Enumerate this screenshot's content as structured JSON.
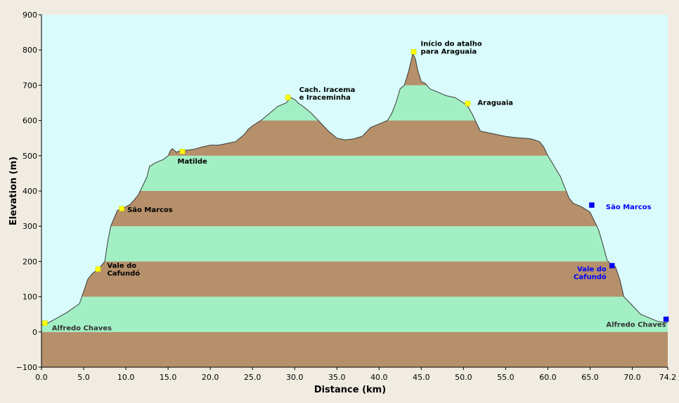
{
  "chart_data": {
    "type": "area",
    "xlabel": "Distance  (km)",
    "ylabel": "Elevation (m)",
    "xlim": [
      0,
      74.2
    ],
    "ylim": [
      -100,
      900
    ],
    "x_ticks": [
      "0.0",
      "5.0",
      "10.0",
      "15.0",
      "20.0",
      "25.0",
      "30.0",
      "35.0",
      "40.0",
      "45.0",
      "50.0",
      "55.0",
      "60.0",
      "65.0",
      "70.0",
      "74.2"
    ],
    "x_tick_values": [
      0,
      5,
      10,
      15,
      20,
      25,
      30,
      35,
      40,
      45,
      50,
      55,
      60,
      65,
      70,
      74.2
    ],
    "y_ticks": [
      "900",
      "800",
      "700",
      "600",
      "500",
      "400",
      "300",
      "200",
      "100",
      "0",
      "−100"
    ],
    "y_tick_values": [
      900,
      800,
      700,
      600,
      500,
      400,
      300,
      200,
      100,
      0,
      -100
    ],
    "bands": {
      "step": 100,
      "colors": [
        "#b5906a",
        "#a2efc4"
      ]
    },
    "plot_background": "#d9fbfb",
    "grid": false,
    "profile": {
      "x": [
        0,
        0.5,
        1.5,
        3.0,
        4.5,
        5.0,
        5.5,
        6.0,
        6.8,
        7.5,
        7.8,
        8.2,
        9.0,
        9.5,
        10.0,
        10.5,
        11.0,
        11.5,
        12.5,
        12.8,
        13.5,
        14.5,
        15.0,
        15.3,
        15.5,
        16.0,
        16.5,
        17.0,
        18.0,
        19.0,
        20.0,
        21.0,
        22.0,
        23.0,
        24.0,
        24.5,
        25.0,
        26.0,
        27.0,
        28.0,
        29.0,
        29.5,
        30.0,
        30.5,
        31.0,
        32.0,
        33.0,
        34.0,
        35.0,
        36.0,
        37.0,
        38.0,
        39.0,
        40.0,
        41.0,
        41.5,
        42.0,
        42.5,
        43.0,
        43.5,
        44.0,
        44.3,
        44.6,
        45.0,
        45.5,
        46.0,
        47.0,
        48.0,
        49.0,
        50.0,
        50.5,
        51.0,
        51.5,
        52.0,
        53.0,
        54.0,
        55.0,
        56.0,
        57.0,
        58.0,
        59.0,
        59.5,
        60.0,
        60.5,
        61.0,
        61.5,
        62.0,
        62.5,
        63.0,
        63.5,
        64.0,
        65.0,
        66.0,
        66.5,
        67.0,
        67.5,
        68.0,
        68.5,
        69.0,
        70.0,
        71.0,
        72.0,
        73.0,
        74.2
      ],
      "y": [
        20,
        22,
        35,
        55,
        80,
        115,
        150,
        165,
        180,
        200,
        250,
        300,
        345,
        350,
        355,
        362,
        375,
        390,
        440,
        470,
        480,
        490,
        500,
        515,
        520,
        510,
        515,
        515,
        518,
        525,
        530,
        530,
        535,
        540,
        560,
        575,
        585,
        600,
        620,
        640,
        650,
        665,
        660,
        648,
        640,
        620,
        595,
        570,
        550,
        545,
        548,
        555,
        580,
        590,
        600,
        620,
        650,
        690,
        700,
        740,
        790,
        775,
        740,
        710,
        705,
        690,
        680,
        670,
        665,
        650,
        640,
        620,
        595,
        570,
        565,
        560,
        555,
        552,
        550,
        548,
        540,
        525,
        500,
        480,
        460,
        440,
        410,
        380,
        365,
        360,
        355,
        340,
        290,
        250,
        205,
        190,
        185,
        150,
        100,
        75,
        50,
        40,
        30,
        25
      ]
    },
    "waypoints": [
      {
        "lines": [
          "Alfredo Chaves"
        ],
        "x": 0.4,
        "y": 25,
        "color": "#ffff00",
        "text_color": "#333333"
      },
      {
        "lines": [
          "Vale do",
          "Cafundó"
        ],
        "x": 6.7,
        "y": 178,
        "color": "#ffff00",
        "text_color": "#000000"
      },
      {
        "lines": [
          "São Marcos"
        ],
        "x": 9.5,
        "y": 350,
        "color": "#ffff00",
        "text_color": "#000000"
      },
      {
        "lines": [
          "Matilde"
        ],
        "x": 16.7,
        "y": 512,
        "color": "#ffff00",
        "text_color": "#000000"
      },
      {
        "lines": [
          "Cach. Iracema",
          "e Iraceminha"
        ],
        "x": 29.2,
        "y": 665,
        "color": "#ffff00",
        "text_color": "#000000"
      },
      {
        "lines": [
          "Início do atalho",
          "para Araguaia"
        ],
        "x": 44.1,
        "y": 795,
        "color": "#ffff00",
        "text_color": "#000000"
      },
      {
        "lines": [
          "Araguaia"
        ],
        "x": 50.5,
        "y": 648,
        "color": "#ffff00",
        "text_color": "#000000"
      },
      {
        "lines": [
          "São Marcos"
        ],
        "x": 65.2,
        "y": 360,
        "color": "#0000ff",
        "text_color": "#0000ff"
      },
      {
        "lines": [
          "Vale do",
          "Cafundó"
        ],
        "x": 67.6,
        "y": 188,
        "color": "#0000ff",
        "text_color": "#0000ff"
      },
      {
        "lines": [
          "Alfredo Chaves"
        ],
        "x": 74.0,
        "y": 36,
        "color": "#0000ff",
        "text_color": "#333333"
      }
    ]
  }
}
